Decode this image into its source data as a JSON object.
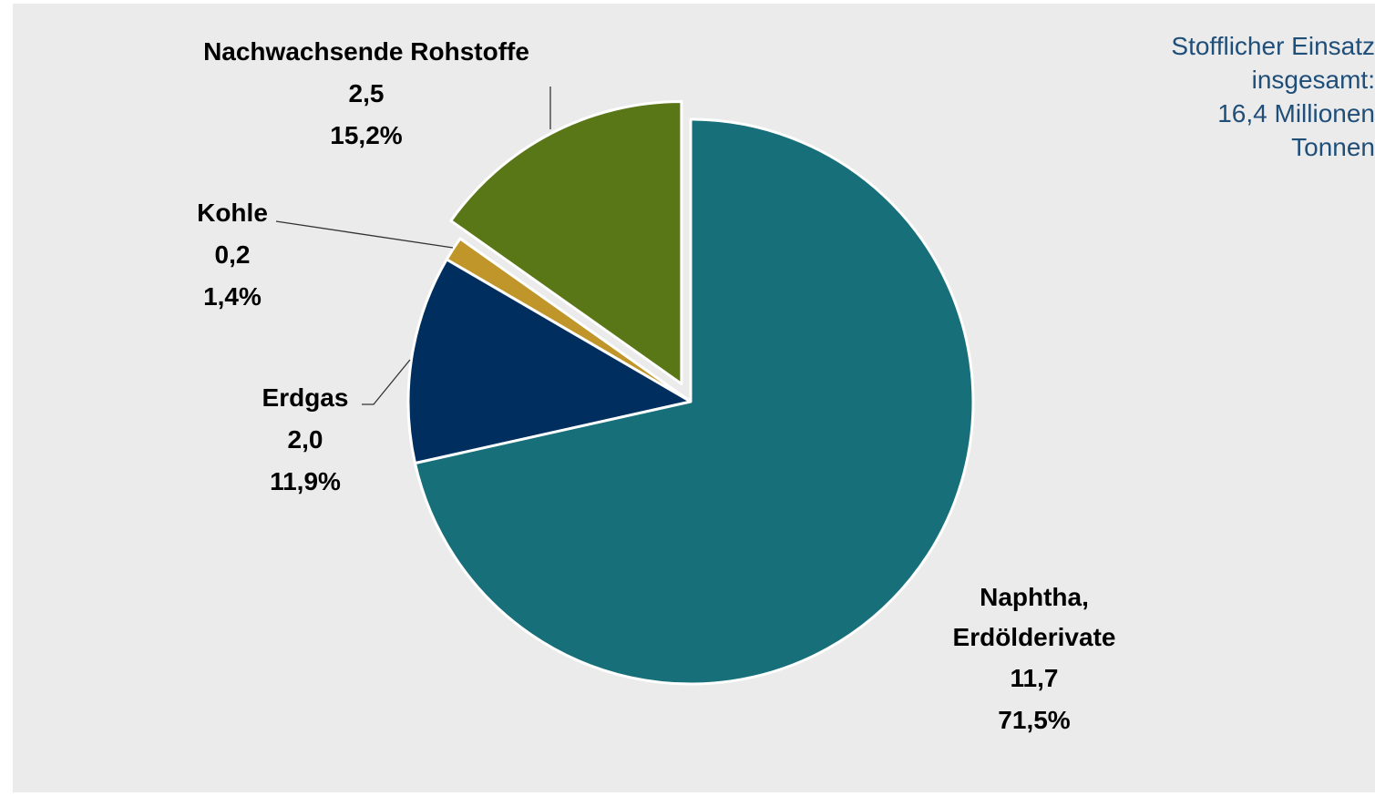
{
  "chart_data": {
    "type": "pie",
    "categories": [
      "Naphtha, Erdölderivate",
      "Erdgas",
      "Kohle",
      "Nachwachsende Rohstoffe"
    ],
    "values": [
      11.7,
      2.0,
      0.2,
      2.5
    ],
    "value_labels": [
      "11,7",
      "2,0",
      "0,2",
      "2,5"
    ],
    "percentages": [
      71.5,
      11.9,
      1.4,
      15.2
    ],
    "percentage_labels": [
      "71,5%",
      "11,9%",
      "1,4%",
      "15,2%"
    ],
    "colors": [
      "#176f7a",
      "#002f5f",
      "#c0962a",
      "#5a7718"
    ],
    "exploded": [
      false,
      false,
      false,
      true
    ],
    "annotation": [
      "Stofflicher Einsatz",
      "insgesamt:",
      "16,4 Millionen",
      "Tonnen"
    ]
  }
}
